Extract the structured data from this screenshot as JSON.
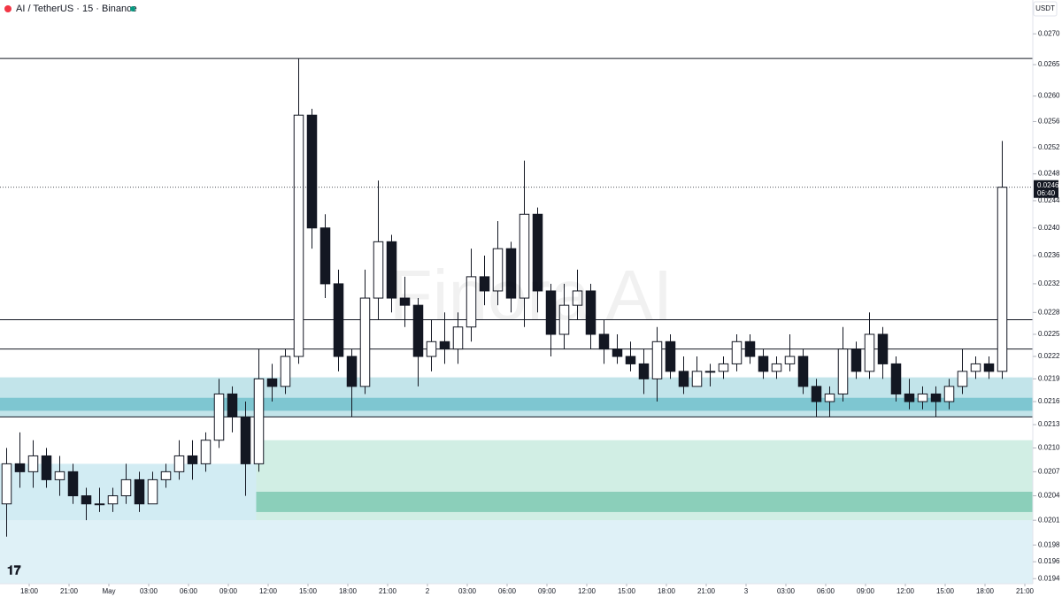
{
  "header": {
    "symbol": "AI / TetherUS · 15 · Binance",
    "currency": "USDT"
  },
  "watermark": "Finora AI",
  "chart_data": {
    "type": "candlestick",
    "log_scale": true,
    "ylim": [
      0.01934,
      0.02756
    ],
    "xlim": [
      0,
      77.8
    ],
    "yticks": [
      {
        "value": 0.027,
        "label": "0.0270"
      },
      {
        "value": 0.0265,
        "label": "0.0265"
      },
      {
        "value": 0.026,
        "label": "0.0260"
      },
      {
        "value": 0.0256,
        "label": "0.0256"
      },
      {
        "value": 0.0252,
        "label": "0.0252"
      },
      {
        "value": 0.0248,
        "label": "0.0248"
      },
      {
        "value": 0.0244,
        "label": "0.0244"
      },
      {
        "value": 0.024,
        "label": "0.0240"
      },
      {
        "value": 0.0236,
        "label": "0.0236"
      },
      {
        "value": 0.0232,
        "label": "0.0232"
      },
      {
        "value": 0.0228,
        "label": "0.0228"
      },
      {
        "value": 0.0225,
        "label": "0.0225"
      },
      {
        "value": 0.0222,
        "label": "0.0222"
      },
      {
        "value": 0.0219,
        "label": "0.0219"
      },
      {
        "value": 0.0216,
        "label": "0.0216"
      },
      {
        "value": 0.0213,
        "label": "0.0213"
      },
      {
        "value": 0.021,
        "label": "0.0210"
      },
      {
        "value": 0.0207,
        "label": "0.0207"
      },
      {
        "value": 0.0204,
        "label": "0.0204"
      },
      {
        "value": 0.0201,
        "label": "0.0201"
      },
      {
        "value": 0.0198,
        "label": "0.0198"
      },
      {
        "value": 0.0196,
        "label": "0.0196"
      },
      {
        "value": 0.0194,
        "label": "0.0194"
      }
    ],
    "xticks": [
      {
        "value": 2.2,
        "label": "18:00"
      },
      {
        "value": 5.2,
        "label": "21:00"
      },
      {
        "value": 8.2,
        "label": "May"
      },
      {
        "value": 11.2,
        "label": "03:00"
      },
      {
        "value": 14.2,
        "label": "06:00"
      },
      {
        "value": 17.2,
        "label": "09:00"
      },
      {
        "value": 20.2,
        "label": "12:00"
      },
      {
        "value": 23.2,
        "label": "15:00"
      },
      {
        "value": 26.2,
        "label": "18:00"
      },
      {
        "value": 29.2,
        "label": "21:00"
      },
      {
        "value": 32.2,
        "label": "2"
      },
      {
        "value": 35.2,
        "label": "03:00"
      },
      {
        "value": 38.2,
        "label": "06:00"
      },
      {
        "value": 41.2,
        "label": "09:00"
      },
      {
        "value": 44.2,
        "label": "12:00"
      },
      {
        "value": 47.2,
        "label": "15:00"
      },
      {
        "value": 50.2,
        "label": "18:00"
      },
      {
        "value": 53.2,
        "label": "21:00"
      },
      {
        "value": 56.2,
        "label": "3"
      },
      {
        "value": 59.2,
        "label": "03:00"
      },
      {
        "value": 62.2,
        "label": "06:00"
      },
      {
        "value": 65.2,
        "label": "09:00"
      },
      {
        "value": 68.2,
        "label": "12:00"
      },
      {
        "value": 71.2,
        "label": "15:00"
      },
      {
        "value": 74.2,
        "label": "18:00"
      },
      {
        "value": 77.2,
        "label": "21:00"
      }
    ],
    "x": [
      0.5,
      1.5,
      2.5,
      3.5,
      4.5,
      5.5,
      6.5,
      7.5,
      8.5,
      9.5,
      10.5,
      11.5,
      12.5,
      13.5,
      14.5,
      15.5,
      16.5,
      17.5,
      18.5,
      19.5,
      20.5,
      21.5,
      22.5,
      23.5,
      24.5,
      25.5,
      26.5,
      27.5,
      28.5,
      29.5,
      30.5,
      31.5,
      32.5,
      33.5,
      34.5,
      35.5,
      36.5,
      37.5,
      38.5,
      39.5,
      40.5,
      41.5,
      42.5,
      43.5,
      44.5,
      45.5,
      46.5,
      47.5,
      48.5,
      49.5,
      50.5,
      51.5,
      52.5,
      53.5,
      54.5,
      55.5,
      56.5,
      57.5,
      58.5,
      59.5,
      60.5,
      61.5,
      62.5,
      63.5,
      64.5,
      65.5,
      66.5,
      67.5,
      68.5,
      69.5,
      70.5,
      71.5,
      72.5,
      73.5,
      74.5,
      75.5
    ],
    "open": [
      0.0203,
      0.0208,
      0.0207,
      0.0209,
      0.0206,
      0.0207,
      0.0204,
      0.0203,
      0.0203,
      0.0204,
      0.0206,
      0.0203,
      0.0206,
      0.0207,
      0.0209,
      0.0208,
      0.0211,
      0.0217,
      0.0214,
      0.0208,
      0.0219,
      0.0218,
      0.0222,
      0.0257,
      0.024,
      0.0232,
      0.0222,
      0.0218,
      0.023,
      0.0238,
      0.023,
      0.0229,
      0.0222,
      0.0224,
      0.0223,
      0.0226,
      0.0233,
      0.0231,
      0.0237,
      0.023,
      0.0242,
      0.0231,
      0.0225,
      0.0229,
      0.0231,
      0.0225,
      0.0223,
      0.0222,
      0.0221,
      0.0219,
      0.0224,
      0.022,
      0.0218,
      0.022,
      0.022,
      0.0221,
      0.0224,
      0.0222,
      0.022,
      0.0221,
      0.0222,
      0.0218,
      0.0216,
      0.0217,
      0.0223,
      0.022,
      0.0225,
      0.0221,
      0.0217,
      0.0216,
      0.0217,
      0.0216,
      0.0218,
      0.022,
      0.0221,
      0.022
    ],
    "high": [
      0.021,
      0.0212,
      0.0211,
      0.021,
      0.0209,
      0.0208,
      0.0205,
      0.0205,
      0.0205,
      0.0208,
      0.0207,
      0.0207,
      0.0208,
      0.0211,
      0.0211,
      0.0212,
      0.0219,
      0.0218,
      0.0216,
      0.0223,
      0.0221,
      0.0223,
      0.0266,
      0.0258,
      0.0242,
      0.0234,
      0.0223,
      0.0234,
      0.0247,
      0.0239,
      0.0233,
      0.023,
      0.0227,
      0.0228,
      0.0228,
      0.0237,
      0.0236,
      0.0241,
      0.0238,
      0.025,
      0.0243,
      0.0232,
      0.0232,
      0.0234,
      0.0232,
      0.0227,
      0.0225,
      0.0224,
      0.0223,
      0.0226,
      0.0225,
      0.0222,
      0.0222,
      0.0221,
      0.0222,
      0.0225,
      0.0225,
      0.0223,
      0.0222,
      0.0225,
      0.0223,
      0.0219,
      0.0218,
      0.0226,
      0.0224,
      0.0228,
      0.0226,
      0.0222,
      0.0219,
      0.0218,
      0.0218,
      0.0219,
      0.0223,
      0.0222,
      0.0222,
      0.0253
    ],
    "low": [
      0.0199,
      0.0205,
      0.0205,
      0.0205,
      0.0204,
      0.0203,
      0.0201,
      0.0202,
      0.0202,
      0.0203,
      0.0202,
      0.0203,
      0.0205,
      0.0206,
      0.0206,
      0.0207,
      0.021,
      0.0212,
      0.0204,
      0.0207,
      0.0216,
      0.0217,
      0.0221,
      0.0237,
      0.023,
      0.022,
      0.0214,
      0.0217,
      0.0227,
      0.0228,
      0.0226,
      0.0218,
      0.022,
      0.0221,
      0.0221,
      0.0224,
      0.0229,
      0.0229,
      0.0228,
      0.0226,
      0.0228,
      0.0222,
      0.0223,
      0.0227,
      0.0223,
      0.0221,
      0.0221,
      0.022,
      0.0217,
      0.0216,
      0.0219,
      0.0217,
      0.0218,
      0.0218,
      0.0219,
      0.022,
      0.0221,
      0.0219,
      0.0219,
      0.022,
      0.0217,
      0.0214,
      0.0214,
      0.0216,
      0.0219,
      0.0219,
      0.0219,
      0.0216,
      0.0215,
      0.0215,
      0.0214,
      0.0215,
      0.0217,
      0.0219,
      0.0219,
      0.0219
    ],
    "close": [
      0.0208,
      0.0207,
      0.0209,
      0.0206,
      0.0207,
      0.0204,
      0.0203,
      0.0203,
      0.0204,
      0.0206,
      0.0203,
      0.0206,
      0.0207,
      0.0209,
      0.0208,
      0.0211,
      0.0217,
      0.0214,
      0.0208,
      0.0219,
      0.0218,
      0.0222,
      0.0257,
      0.024,
      0.0232,
      0.0222,
      0.0218,
      0.023,
      0.0238,
      0.023,
      0.0229,
      0.0222,
      0.0224,
      0.0223,
      0.0226,
      0.0233,
      0.0231,
      0.0237,
      0.023,
      0.0242,
      0.0231,
      0.0225,
      0.0229,
      0.0231,
      0.0225,
      0.0223,
      0.0222,
      0.0221,
      0.0219,
      0.0224,
      0.022,
      0.0218,
      0.022,
      0.022,
      0.0221,
      0.0224,
      0.0222,
      0.022,
      0.0221,
      0.0222,
      0.0218,
      0.0216,
      0.0217,
      0.0223,
      0.022,
      0.0225,
      0.0221,
      0.0217,
      0.0216,
      0.0217,
      0.0216,
      0.0218,
      0.022,
      0.0221,
      0.022,
      0.0246
    ],
    "levels": [
      0.0266,
      0.0227,
      0.0223,
      0.0214
    ],
    "zones": [
      {
        "x": [
          0,
          77.8
        ],
        "price": [
          0.02192,
          0.0214
        ],
        "color": "#4fb3c4",
        "opacity": 0.35
      },
      {
        "x": [
          0,
          77.8
        ],
        "price": [
          0.02165,
          0.02148
        ],
        "color": "#3aa7b8",
        "opacity": 0.5
      },
      {
        "x": [
          19.3,
          77.8
        ],
        "price": [
          0.0211,
          0.0201
        ],
        "color": "#7ccdb3",
        "opacity": 0.35
      },
      {
        "x": [
          19.3,
          77.8
        ],
        "price": [
          0.02045,
          0.0202
        ],
        "color": "#46b08f",
        "opacity": 0.5
      },
      {
        "x": [
          0,
          19.3
        ],
        "price": [
          0.0208,
          0.0201
        ],
        "color": "#8fcfe0",
        "opacity": 0.4
      },
      {
        "x": [
          0,
          77.8
        ],
        "price": [
          0.0201,
          0.01934
        ],
        "color": "#b7dfee",
        "opacity": 0.45
      }
    ],
    "last_price": {
      "value": 0.0246,
      "label": "0.0246"
    },
    "countdown": "06:40"
  }
}
